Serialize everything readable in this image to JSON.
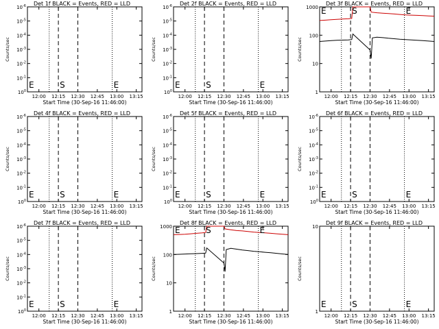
{
  "figure": {
    "background": "#ffffff",
    "event_color": "#000000",
    "lld_color": "#cc0000"
  },
  "chart_data": [
    {
      "type": "line",
      "title": "Det 1f BLACK = Events, RED = LLD",
      "xlabel": "Start Time (30-Sep-16 11:46:00)",
      "ylabel": "Counts/sec",
      "yscale": "log",
      "xticks": [
        "12:00",
        "12:15",
        "12:30",
        "12:45",
        "13:00",
        "13:15"
      ],
      "yticks": [
        "10^0",
        "10^-1",
        "10^-2",
        "10^-3",
        "10^-4",
        "10^-5",
        "10^-6"
      ],
      "markers": [
        "E",
        "S",
        "E"
      ],
      "series": []
    },
    {
      "type": "line",
      "title": "Det 2f BLACK = Events, RED = LLD",
      "xlabel": "Start Time (30-Sep-16 11:46:00)",
      "ylabel": "Counts/sec",
      "yscale": "log",
      "xticks": [
        "12:00",
        "12:15",
        "12:30",
        "12:45",
        "13:00",
        "13:15"
      ],
      "yticks": [
        "10^0",
        "10^-1",
        "10^-2",
        "10^-3",
        "10^-4",
        "10^-5",
        "10^-6"
      ],
      "markers": [
        "E",
        "S",
        "E"
      ],
      "series": []
    },
    {
      "type": "line",
      "title": "Det 3f BLACK = Events, RED = LLD",
      "xlabel": "Start Time (30-Sep-16 11:46:00)",
      "ylabel": "Counts/sec",
      "yscale": "log",
      "xticks": [
        "12:00",
        "12:15",
        "12:30",
        "12:45",
        "13:00",
        "13:15"
      ],
      "yticks": [
        "1",
        "10",
        "100",
        "1000"
      ],
      "markers": [
        "E",
        "S",
        "E"
      ],
      "series": [
        {
          "color": "#cc0000",
          "x": [
            0,
            5,
            10,
            15,
            20,
            25,
            28,
            29,
            30,
            35,
            40,
            44,
            45,
            50,
            55,
            60,
            65,
            70,
            75,
            80,
            85,
            90,
            95,
            100
          ],
          "y": [
            330,
            340,
            350,
            360,
            370,
            380,
            390,
            1300,
            1300,
            1300,
            1300,
            1300,
            650,
            620,
            600,
            580,
            560,
            540,
            520,
            510,
            500,
            490,
            480,
            470
          ]
        },
        {
          "color": "#000000",
          "x": [
            0,
            5,
            10,
            15,
            20,
            25,
            28,
            29,
            44,
            45,
            46,
            50,
            55,
            60,
            65,
            70,
            75,
            80,
            85,
            90,
            95,
            100
          ],
          "y": [
            60,
            62,
            64,
            66,
            67,
            68,
            70,
            110,
            30,
            15,
            80,
            85,
            82,
            78,
            75,
            72,
            70,
            68,
            66,
            64,
            62,
            60
          ]
        }
      ]
    },
    {
      "type": "line",
      "title": "Det 4f BLACK = Events, RED = LLD",
      "xlabel": "Start Time (30-Sep-16 11:46:00)",
      "ylabel": "Counts/sec",
      "yscale": "log",
      "xticks": [
        "12:00",
        "12:15",
        "12:30",
        "12:45",
        "13:00",
        "13:15"
      ],
      "yticks": [
        "10^0",
        "10^-1",
        "10^-2",
        "10^-3",
        "10^-4",
        "10^-5",
        "10^-6"
      ],
      "markers": [
        "E",
        "S",
        "E"
      ],
      "series": []
    },
    {
      "type": "line",
      "title": "Det 5f BLACK = Events, RED = LLD",
      "xlabel": "Start Time (30-Sep-16 11:46:00)",
      "ylabel": "Counts/sec",
      "yscale": "log",
      "xticks": [
        "12:00",
        "12:15",
        "12:30",
        "12:45",
        "13:00",
        "13:15"
      ],
      "yticks": [
        "10^0",
        "10^-1",
        "10^-2",
        "10^-3",
        "10^-4",
        "10^-5",
        "10^-6"
      ],
      "markers": [
        "E",
        "S",
        "E"
      ],
      "series": []
    },
    {
      "type": "line",
      "title": "Det 6f BLACK = Events, RED = LLD",
      "xlabel": "Start Time (30-Sep-16 11:46:00)",
      "ylabel": "Counts/sec",
      "yscale": "log",
      "xticks": [
        "12:00",
        "12:15",
        "12:30",
        "12:45",
        "13:00",
        "13:15"
      ],
      "yticks": [
        "10^0",
        "10^-1",
        "10^-2",
        "10^-3",
        "10^-4",
        "10^-5",
        "10^-6"
      ],
      "markers": [
        "E",
        "S",
        "E"
      ],
      "series": []
    },
    {
      "type": "line",
      "title": "Det 7f BLACK = Events, RED = LLD",
      "xlabel": "Start Time (30-Sep-16 11:46:00)",
      "ylabel": "Counts/sec",
      "yscale": "log",
      "xticks": [
        "12:00",
        "12:15",
        "12:30",
        "12:45",
        "13:00",
        "13:15"
      ],
      "yticks": [
        "10^0",
        "10^-1",
        "10^-2",
        "10^-3",
        "10^-4",
        "10^-5",
        "10^-6"
      ],
      "markers": [
        "E",
        "S",
        "E"
      ],
      "series": []
    },
    {
      "type": "line",
      "title": "Det 8f BLACK = Events, RED = LLD",
      "xlabel": "Start Time (30-Sep-16 11:46:00)",
      "ylabel": "Counts/sec",
      "yscale": "log",
      "xticks": [
        "12:00",
        "12:15",
        "12:30",
        "12:45",
        "13:00",
        "13:15"
      ],
      "yticks": [
        "1",
        "10",
        "100",
        "1000"
      ],
      "markers": [
        "E",
        "S",
        "E"
      ],
      "series": [
        {
          "color": "#cc0000",
          "x": [
            0,
            5,
            10,
            15,
            20,
            25,
            28,
            29,
            30,
            35,
            40,
            44,
            45,
            50,
            55,
            60,
            65,
            70,
            75,
            80,
            85,
            90,
            95,
            100
          ],
          "y": [
            500,
            510,
            520,
            540,
            560,
            580,
            600,
            1300,
            1300,
            1300,
            1300,
            1300,
            800,
            750,
            700,
            680,
            650,
            620,
            600,
            580,
            560,
            540,
            520,
            500
          ]
        },
        {
          "color": "#000000",
          "x": [
            0,
            5,
            10,
            15,
            20,
            25,
            28,
            29,
            44,
            45,
            46,
            50,
            55,
            60,
            65,
            70,
            75,
            80,
            85,
            90,
            95,
            100
          ],
          "y": [
            100,
            102,
            104,
            106,
            108,
            110,
            112,
            170,
            50,
            25,
            150,
            165,
            155,
            145,
            138,
            130,
            125,
            120,
            115,
            110,
            105,
            100
          ]
        }
      ]
    },
    {
      "type": "line",
      "title": "Det 9f BLACK = Events, RED = LLD",
      "xlabel": "Start Time (30-Sep-16 11:46:00)",
      "ylabel": "Counts/sec",
      "yscale": "log",
      "xticks": [
        "12:00",
        "12:15",
        "12:30",
        "12:45",
        "13:00",
        "13:15"
      ],
      "yticks": [
        "1",
        "10"
      ],
      "markers": [
        "E",
        "S",
        "E"
      ],
      "series": []
    }
  ]
}
